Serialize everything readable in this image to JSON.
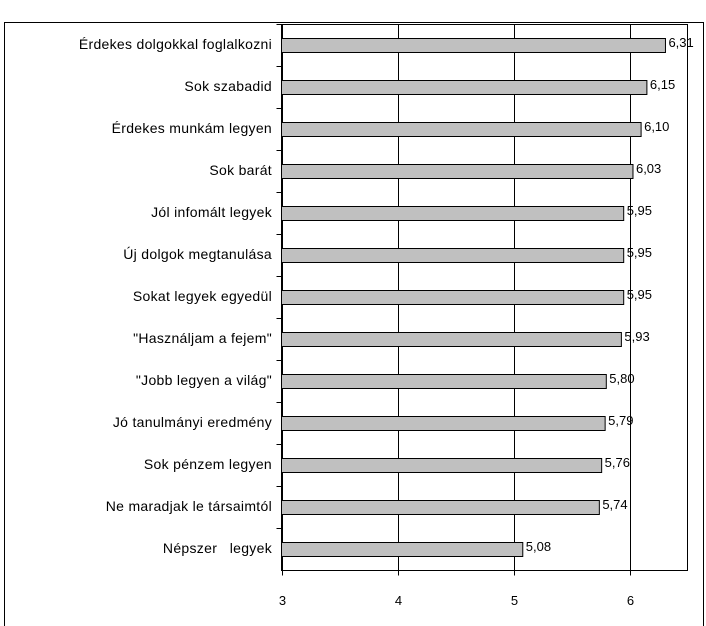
{
  "chart_data": {
    "type": "hbar",
    "categories": [
      "Érdekes dolgokkal foglalkozni",
      "Sok szabadid",
      "Érdekes munkám legyen",
      "Sok barát",
      "Jól infomált legyek",
      "Új dolgok megtanulása",
      "Sokat legyek egyedül",
      "\"Használjam a fejem\"",
      "\"Jobb legyen a világ\"",
      "Jó tanulmányi eredmény",
      "Sok pénzem legyen",
      "Ne maradjak le társaimtól",
      "Népszer   legyek"
    ],
    "values": [
      6.31,
      6.15,
      6.1,
      6.03,
      5.95,
      5.95,
      5.95,
      5.93,
      5.8,
      5.79,
      5.76,
      5.74,
      5.08
    ],
    "value_labels": [
      "6,31",
      "6,15",
      "6,10",
      "6,03",
      "5,95",
      "5,95",
      "5,95",
      "5,93",
      "5,80",
      "5,79",
      "5,76",
      "5,74",
      "5,08"
    ],
    "color": "#c0c0c0",
    "xlim": [
      3,
      6.5
    ],
    "xticks": [
      3,
      4,
      5,
      6
    ],
    "grid": true
  }
}
